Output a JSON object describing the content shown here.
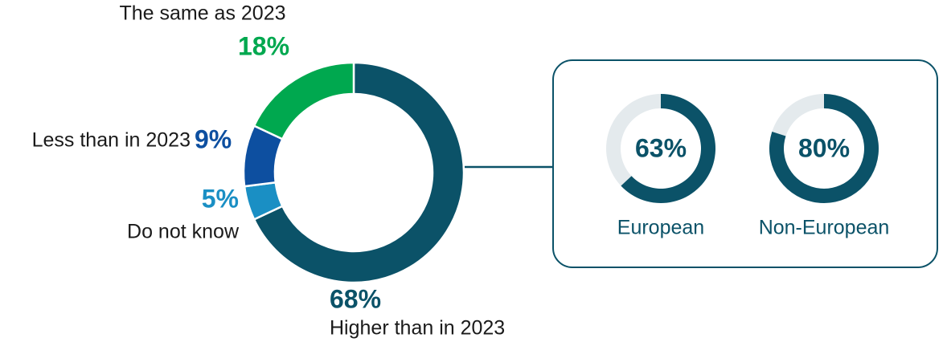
{
  "chart_data": [
    {
      "type": "donut",
      "categories": [
        "Higher than in 2023",
        "Do not know",
        "Less than in 2023",
        "The same as 2023"
      ],
      "values": [
        68,
        5,
        9,
        18
      ],
      "value_labels": [
        "68%",
        "5%",
        "9%",
        "18%"
      ],
      "colors": [
        "#0b5268",
        "#1a8fc4",
        "#0d4fa0",
        "#00a84f"
      ]
    },
    {
      "type": "ring",
      "categories": [
        "European",
        "Non-European"
      ],
      "values": [
        63,
        80
      ],
      "value_labels": [
        "63%",
        "80%"
      ],
      "color": "#0b5268",
      "track_color": "#e4eaed"
    }
  ]
}
